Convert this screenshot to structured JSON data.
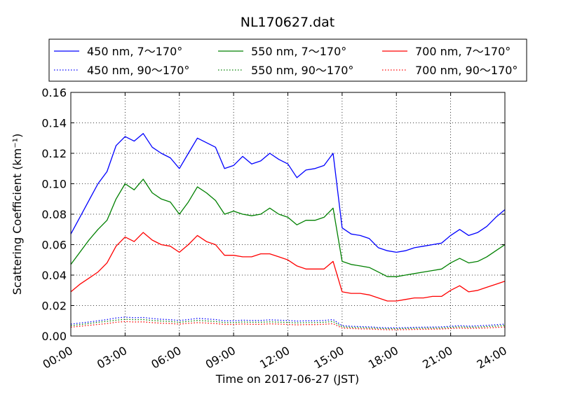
{
  "chart_data": {
    "type": "line",
    "title": "NL170627.dat",
    "xlabel": "Time on 2017-06-27 (JST)",
    "ylabel": "Scattering Coefficient (km⁻¹)",
    "xlim": [
      "00:00",
      "24:00"
    ],
    "ylim": [
      0.0,
      0.16
    ],
    "grid": true,
    "legend_position": "top",
    "x_ticks": [
      "00:00",
      "03:00",
      "06:00",
      "09:00",
      "12:00",
      "15:00",
      "18:00",
      "21:00",
      "24:00"
    ],
    "y_ticks": [
      "0.00",
      "0.02",
      "0.04",
      "0.06",
      "0.08",
      "0.10",
      "0.12",
      "0.14",
      "0.16"
    ],
    "x": [
      "00:00",
      "00:30",
      "01:00",
      "01:30",
      "02:00",
      "02:30",
      "03:00",
      "03:30",
      "04:00",
      "04:30",
      "05:00",
      "05:30",
      "06:00",
      "06:30",
      "07:00",
      "07:30",
      "08:00",
      "08:30",
      "09:00",
      "09:30",
      "10:00",
      "10:30",
      "11:00",
      "11:30",
      "12:00",
      "12:30",
      "13:00",
      "13:30",
      "14:00",
      "14:30",
      "15:00",
      "15:30",
      "16:00",
      "16:30",
      "17:00",
      "17:30",
      "18:00",
      "18:30",
      "19:00",
      "19:30",
      "20:00",
      "20:30",
      "21:00",
      "21:30",
      "22:00",
      "22:30",
      "23:00",
      "23:30",
      "24:00"
    ],
    "series": [
      {
        "name": "450 nm, 7～170°",
        "color": "#0000ff",
        "style": "solid",
        "values": [
          0.067,
          0.078,
          0.089,
          0.1,
          0.108,
          0.125,
          0.131,
          0.128,
          0.133,
          0.124,
          0.12,
          0.117,
          0.11,
          0.12,
          0.13,
          0.127,
          0.124,
          0.11,
          0.112,
          0.118,
          0.113,
          0.115,
          0.12,
          0.116,
          0.113,
          0.104,
          0.109,
          0.11,
          0.112,
          0.12,
          0.071,
          0.067,
          0.066,
          0.064,
          0.058,
          0.056,
          0.055,
          0.056,
          0.058,
          0.059,
          0.06,
          0.061,
          0.066,
          0.07,
          0.066,
          0.068,
          0.072,
          0.078,
          0.083
        ]
      },
      {
        "name": "550 nm, 7～170°",
        "color": "#008000",
        "style": "solid",
        "values": [
          0.047,
          0.055,
          0.063,
          0.07,
          0.076,
          0.09,
          0.1,
          0.096,
          0.103,
          0.094,
          0.09,
          0.088,
          0.08,
          0.088,
          0.098,
          0.094,
          0.089,
          0.08,
          0.082,
          0.08,
          0.079,
          0.08,
          0.084,
          0.08,
          0.078,
          0.073,
          0.076,
          0.076,
          0.078,
          0.084,
          0.049,
          0.047,
          0.046,
          0.045,
          0.042,
          0.039,
          0.039,
          0.04,
          0.041,
          0.042,
          0.043,
          0.044,
          0.048,
          0.051,
          0.048,
          0.049,
          0.052,
          0.056,
          0.06
        ]
      },
      {
        "name": "700 nm, 7～170°",
        "color": "#ff0000",
        "style": "solid",
        "values": [
          0.029,
          0.034,
          0.038,
          0.042,
          0.048,
          0.059,
          0.065,
          0.062,
          0.068,
          0.063,
          0.06,
          0.059,
          0.055,
          0.06,
          0.066,
          0.062,
          0.06,
          0.053,
          0.053,
          0.052,
          0.052,
          0.054,
          0.054,
          0.052,
          0.05,
          0.046,
          0.044,
          0.044,
          0.044,
          0.049,
          0.029,
          0.028,
          0.028,
          0.027,
          0.025,
          0.023,
          0.023,
          0.024,
          0.025,
          0.025,
          0.026,
          0.026,
          0.03,
          0.033,
          0.029,
          0.03,
          0.032,
          0.034,
          0.036
        ]
      },
      {
        "name": "450 nm, 90～170°",
        "color": "#0000ff",
        "style": "dotted",
        "values": [
          0.0078,
          0.0085,
          0.0092,
          0.01,
          0.0108,
          0.0118,
          0.0124,
          0.012,
          0.0122,
          0.0115,
          0.011,
          0.0107,
          0.0102,
          0.0108,
          0.0116,
          0.0112,
          0.0108,
          0.01,
          0.01,
          0.0104,
          0.0102,
          0.0102,
          0.0106,
          0.0104,
          0.0102,
          0.0098,
          0.01,
          0.01,
          0.0102,
          0.0108,
          0.0068,
          0.0064,
          0.0062,
          0.006,
          0.0056,
          0.0054,
          0.0054,
          0.0055,
          0.0057,
          0.0058,
          0.0059,
          0.006,
          0.0064,
          0.0068,
          0.0065,
          0.0067,
          0.007,
          0.0074,
          0.0078
        ]
      },
      {
        "name": "550 nm, 90～170°",
        "color": "#008000",
        "style": "dotted",
        "values": [
          0.0068,
          0.0075,
          0.0082,
          0.009,
          0.0096,
          0.0104,
          0.011,
          0.0107,
          0.0108,
          0.0102,
          0.0098,
          0.0095,
          0.009,
          0.0096,
          0.0102,
          0.0099,
          0.0095,
          0.0088,
          0.0088,
          0.0092,
          0.009,
          0.009,
          0.0093,
          0.0091,
          0.0089,
          0.0086,
          0.0088,
          0.0088,
          0.009,
          0.0095,
          0.006,
          0.0057,
          0.0055,
          0.0053,
          0.005,
          0.0048,
          0.0048,
          0.0049,
          0.005,
          0.0051,
          0.0052,
          0.0053,
          0.0057,
          0.006,
          0.0058,
          0.0059,
          0.0062,
          0.0065,
          0.0069
        ]
      },
      {
        "name": "700 nm, 90～170°",
        "color": "#ff0000",
        "style": "dotted",
        "values": [
          0.0058,
          0.0064,
          0.007,
          0.0076,
          0.0082,
          0.009,
          0.0095,
          0.0092,
          0.0093,
          0.0088,
          0.0084,
          0.0082,
          0.0078,
          0.0083,
          0.0088,
          0.0085,
          0.0082,
          0.0076,
          0.0076,
          0.0079,
          0.0077,
          0.0077,
          0.008,
          0.0078,
          0.0076,
          0.0073,
          0.0075,
          0.0075,
          0.0077,
          0.0081,
          0.0052,
          0.0049,
          0.0047,
          0.0046,
          0.0043,
          0.0041,
          0.0041,
          0.0042,
          0.0043,
          0.0044,
          0.0045,
          0.0046,
          0.0049,
          0.0052,
          0.005,
          0.0051,
          0.0053,
          0.0056,
          0.0059
        ]
      }
    ]
  }
}
